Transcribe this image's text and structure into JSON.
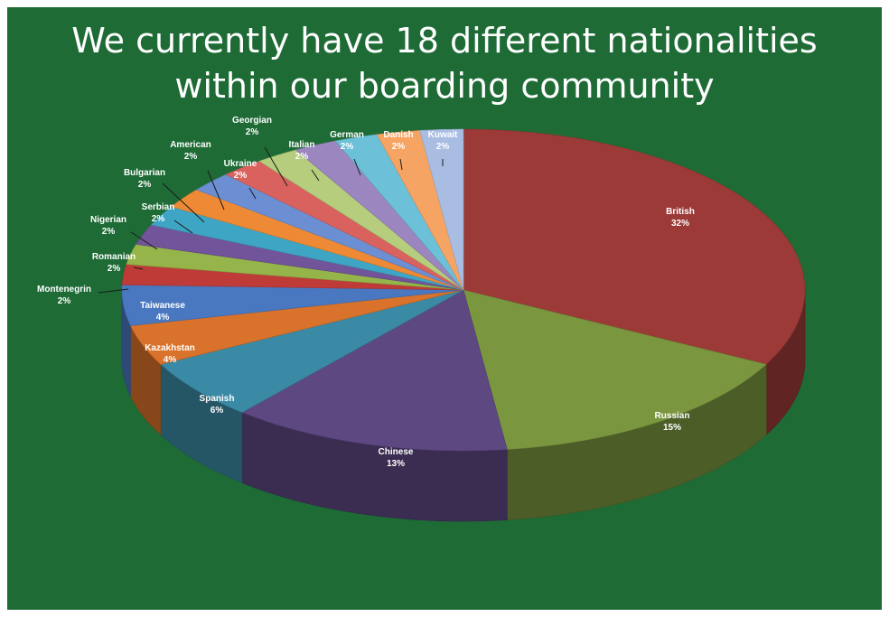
{
  "slide": {
    "title_line1": "We currently have 18 different nationalities",
    "title_line2": "within our boarding community",
    "background": "#1e6b36"
  },
  "chart_data": {
    "type": "pie",
    "style": "3d-exploded-none",
    "start": "top, clockwise",
    "slices": [
      {
        "label": "British",
        "value": 32,
        "text": "32%",
        "color": "#9b3a37"
      },
      {
        "label": "Russian",
        "value": 15,
        "text": "15%",
        "color": "#7a963f"
      },
      {
        "label": "Chinese",
        "value": 13,
        "text": "13%",
        "color": "#5e4882"
      },
      {
        "label": "Spanish",
        "value": 6,
        "text": "6%",
        "color": "#3b8aa5"
      },
      {
        "label": "Kazakhstan",
        "value": 4,
        "text": "4%",
        "color": "#d9722b"
      },
      {
        "label": "Taiwanese",
        "value": 4,
        "text": "4%",
        "color": "#4a78c0"
      },
      {
        "label": "Montenegrin",
        "value": 2,
        "text": "2%",
        "color": "#bf3b38"
      },
      {
        "label": "Romanian",
        "value": 2,
        "text": "2%",
        "color": "#95b54a"
      },
      {
        "label": "Nigerian",
        "value": 2,
        "text": "2%",
        "color": "#72549a"
      },
      {
        "label": "Serbian",
        "value": 2,
        "text": "2%",
        "color": "#3ea6c4"
      },
      {
        "label": "Bulgarian",
        "value": 2,
        "text": "2%",
        "color": "#ee8a35"
      },
      {
        "label": "American",
        "value": 2,
        "text": "2%",
        "color": "#6c8fd4"
      },
      {
        "label": "Ukraine",
        "value": 2,
        "text": "2%",
        "color": "#d9625e"
      },
      {
        "label": "Georgian",
        "value": 2,
        "text": "2%",
        "color": "#b5cd7c"
      },
      {
        "label": "Italian",
        "value": 2,
        "text": "2%",
        "color": "#9b86c0"
      },
      {
        "label": "German",
        "value": 2,
        "text": "2%",
        "color": "#6cc0d8"
      },
      {
        "label": "Danish",
        "value": 2,
        "text": "2%",
        "color": "#f6a463"
      },
      {
        "label": "Kuwait",
        "value": 2,
        "text": "2%",
        "color": "#a9bde3"
      }
    ]
  }
}
